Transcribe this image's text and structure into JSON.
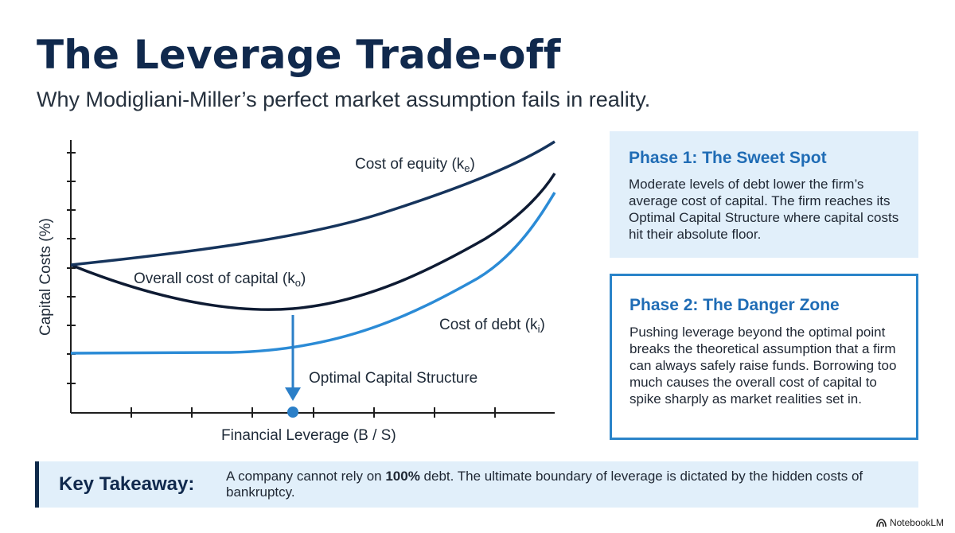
{
  "header": {
    "title": "The Leverage Trade-off",
    "subtitle": "Why Modigliani-Miller’s perfect market assumption fails in reality."
  },
  "chart_data": {
    "type": "line",
    "ylabel": "Capital Costs (%)",
    "xlabel": "Financial Leverage (B / S)",
    "series": [
      {
        "name": "Cost of equity",
        "symbol": "e",
        "color": "#16345c"
      },
      {
        "name": "Overall cost of capital",
        "symbol": "o",
        "color": "#0e1b33"
      },
      {
        "name": "Cost of debt",
        "symbol": "i",
        "color": "#2b8bd6"
      }
    ],
    "annotations": [
      {
        "text": "Optimal Capital Structure",
        "color": "#2b7fc8"
      }
    ]
  },
  "panels": [
    {
      "title": "Phase 1: The Sweet Spot",
      "body": "Moderate levels of debt lower the firm’s average cost of capital. The firm reaches its Optimal Capital Structure where capital costs hit their absolute floor."
    },
    {
      "title": "Phase 2: The Danger Zone",
      "body": "Pushing leverage beyond the optimal point breaks the theoretical assumption that a firm can always safely raise funds. Borrowing too much causes the overall cost of capital to spike sharply as market realities set in."
    }
  ],
  "takeaway": {
    "label": "Key Takeaway:",
    "text_before": "A company cannot rely on ",
    "text_bold": "100%",
    "text_after": " debt. The ultimate boundary of leverage is dictated by the hidden costs of bankruptcy."
  },
  "footer": {
    "brand": "NotebookLM",
    "brand_icon": "notebooklm-logo-icon"
  }
}
